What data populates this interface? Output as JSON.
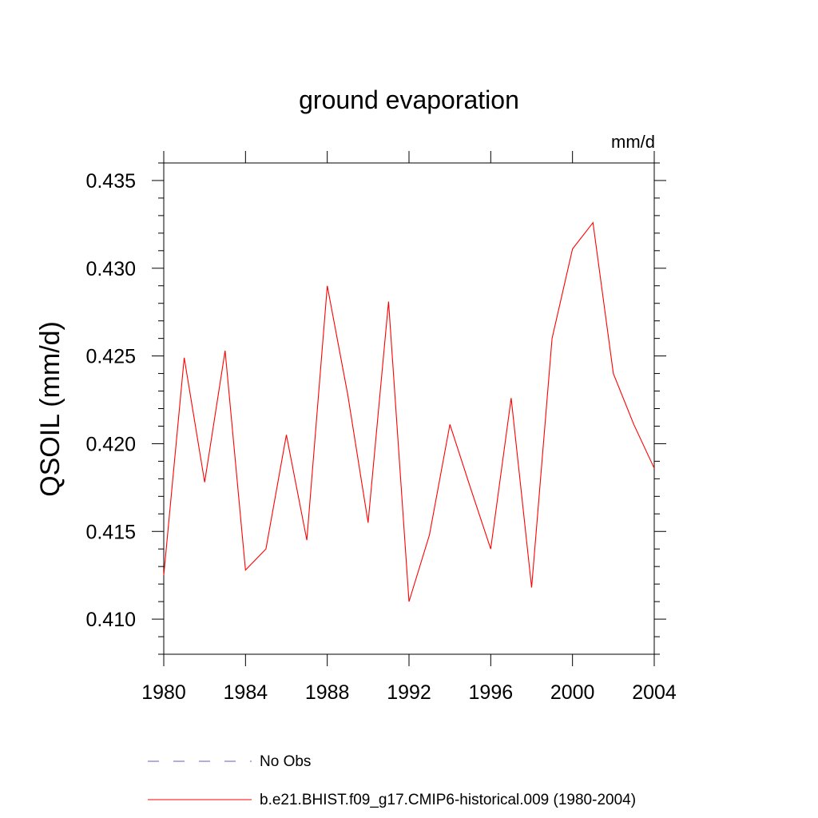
{
  "chart_data": {
    "type": "line",
    "title": "ground evaporation",
    "units_label": "mm/d",
    "xlabel": "",
    "ylabel": "QSOIL  (mm/d)",
    "xlim": [
      1980,
      2004
    ],
    "ylim": [
      0.408,
      0.436
    ],
    "x_ticks": [
      1980,
      1984,
      1988,
      1992,
      1996,
      2000,
      2004
    ],
    "x_tick_labels": [
      "1980",
      "1984",
      "1988",
      "1992",
      "1996",
      "2000",
      "2004"
    ],
    "y_ticks": [
      0.41,
      0.415,
      0.42,
      0.425,
      0.43,
      0.435
    ],
    "y_tick_labels": [
      "0.410",
      "0.415",
      "0.420",
      "0.425",
      "0.430",
      "0.435"
    ],
    "grid": false,
    "legend_position": "bottom",
    "series": [
      {
        "name": "b.e21.BHIST.f09_g17.CMIP6-historical.009 (1980-2004)",
        "color": "#ff0000",
        "line_style": "solid",
        "x": [
          1980,
          1981,
          1982,
          1983,
          1984,
          1985,
          1986,
          1987,
          1988,
          1989,
          1990,
          1991,
          1992,
          1993,
          1994,
          1995,
          1996,
          1997,
          1998,
          1999,
          2000,
          2001,
          2002,
          2003,
          2004
        ],
        "y": [
          0.4125,
          0.4249,
          0.4178,
          0.4253,
          0.4128,
          0.414,
          0.4205,
          0.4145,
          0.429,
          0.4228,
          0.4155,
          0.4281,
          0.411,
          0.4148,
          0.4211,
          0.4175,
          0.414,
          0.4226,
          0.4118,
          0.426,
          0.4311,
          0.4326,
          0.424,
          0.4211,
          0.4186
        ]
      }
    ],
    "legend": [
      {
        "label": "No Obs",
        "color": "#8080cc",
        "line_style": "dashed"
      },
      {
        "label": "b.e21.BHIST.f09_g17.CMIP6-historical.009 (1980-2004)",
        "color": "#ff0000",
        "line_style": "solid"
      }
    ]
  }
}
